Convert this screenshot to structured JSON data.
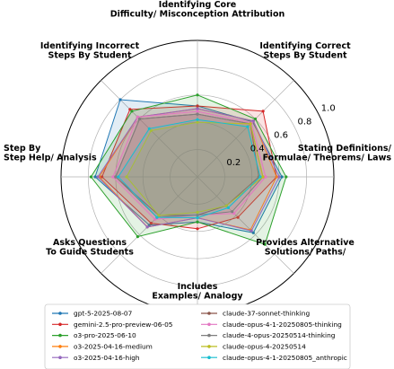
{
  "chart_data": {
    "type": "radar",
    "title": "",
    "axes": [
      "Identifying Core\nDifficulty/ Misconception Attribution",
      "Identifying Correct\nSteps By Student",
      "Stating Definitions/\nFormulae/ Theorems/ Laws",
      "Provides Alternative\nSolutions/ Paths/",
      "Includes\nExamples/ Analogy",
      "Asks Questions\nTo Guide Students",
      "Step By\nStep Help/ Analysis",
      "Identifying Incorrect\nSteps By Student"
    ],
    "rlim": [
      0,
      1.0
    ],
    "ticks": [
      0.2,
      0.4,
      0.6,
      0.8,
      1.0
    ],
    "tick_labels": [
      "0.2",
      "0.4",
      "0.6",
      "0.8",
      "1.0"
    ],
    "legend_position": "bottom",
    "series": [
      {
        "name": "gpt-5-2025-08-07",
        "color": "#1f77b4",
        "values": [
          0.52,
          0.57,
          0.62,
          0.58,
          0.33,
          0.5,
          0.75,
          0.8
        ]
      },
      {
        "name": "gemini-2.5-pro-preview-06-05",
        "color": "#d62728",
        "values": [
          0.52,
          0.68,
          0.58,
          0.42,
          0.38,
          0.48,
          0.7,
          0.7
        ]
      },
      {
        "name": "o3-pro-2025-06-10",
        "color": "#2ca02c",
        "values": [
          0.6,
          0.6,
          0.65,
          0.7,
          0.33,
          0.62,
          0.78,
          0.68
        ]
      },
      {
        "name": "o3-2025-04-16-medium",
        "color": "#ff7f0e",
        "values": [
          0.5,
          0.58,
          0.58,
          0.55,
          0.3,
          0.52,
          0.72,
          0.62
        ]
      },
      {
        "name": "o3-2025-04-16-high",
        "color": "#9467bd",
        "values": [
          0.5,
          0.58,
          0.6,
          0.56,
          0.3,
          0.52,
          0.73,
          0.62
        ]
      },
      {
        "name": "claude-37-sonnet-thinking",
        "color": "#8c564b",
        "values": [
          0.46,
          0.55,
          0.45,
          0.3,
          0.28,
          0.4,
          0.6,
          0.6
        ]
      },
      {
        "name": "claude-opus-4-1-20250805-thinking",
        "color": "#e377c2",
        "values": [
          0.48,
          0.56,
          0.5,
          0.38,
          0.28,
          0.44,
          0.62,
          0.62
        ]
      },
      {
        "name": "claude-4-opus-20250514-thinking",
        "color": "#7f7f7f",
        "values": [
          0.46,
          0.55,
          0.48,
          0.36,
          0.28,
          0.42,
          0.6,
          0.6
        ]
      },
      {
        "name": "claude-opus-4-20250514",
        "color": "#bcbd22",
        "values": [
          0.4,
          0.55,
          0.48,
          0.3,
          0.26,
          0.4,
          0.52,
          0.48
        ]
      },
      {
        "name": "claude-opus-4-1-20250805_anthropic",
        "color": "#17becf",
        "values": [
          0.42,
          0.52,
          0.46,
          0.32,
          0.3,
          0.42,
          0.58,
          0.5
        ]
      }
    ]
  }
}
